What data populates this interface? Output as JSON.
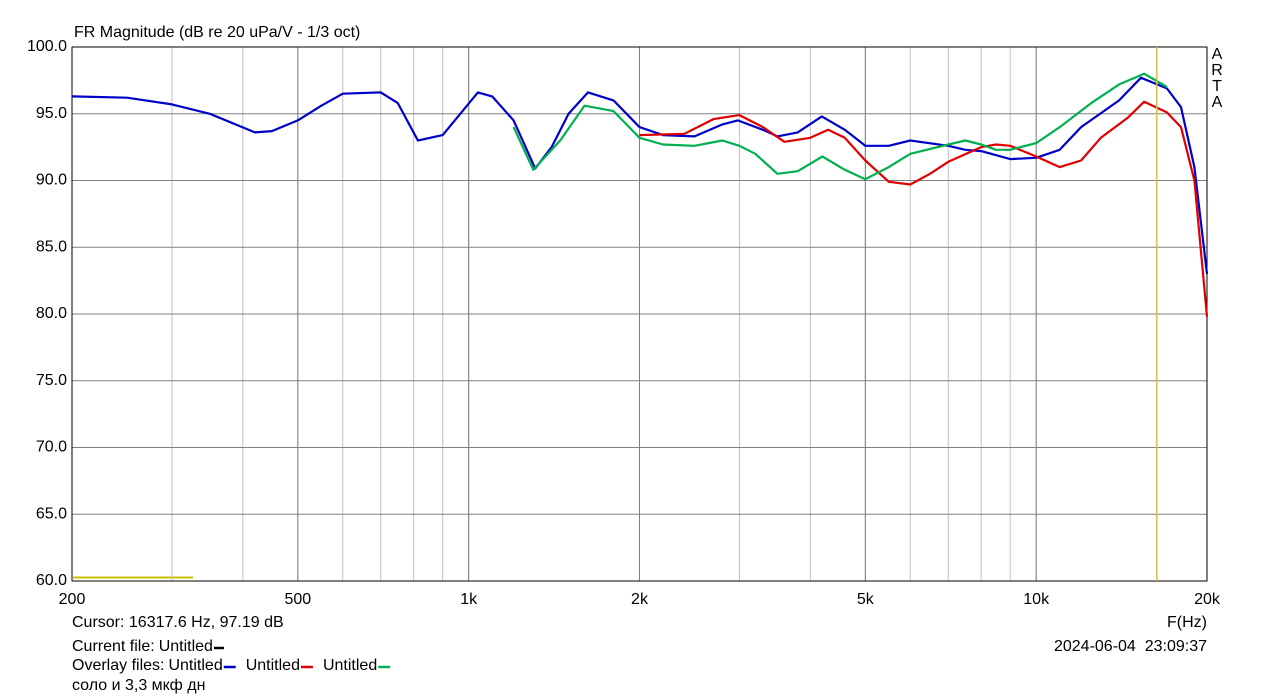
{
  "chart_data": {
    "type": "line",
    "title": "FR Magnitude (dB re 20 uPa/V - 1/3 oct)",
    "watermark": "ARTA",
    "x_label": "F(Hz)",
    "log_x": true,
    "grid": true,
    "xlim": [
      200,
      20000
    ],
    "xticks": [
      200,
      500,
      {
        "value": 1000,
        "label": "1k"
      },
      {
        "value": 2000,
        "label": "2k"
      },
      {
        "value": 5000,
        "label": "5k"
      },
      {
        "value": 10000,
        "label": "10k"
      },
      {
        "value": 20000,
        "label": "20k"
      }
    ],
    "ylim": [
      60,
      100
    ],
    "yticks": [
      {
        "value": 60,
        "label": "60.0"
      },
      {
        "value": 65,
        "label": "65.0"
      },
      {
        "value": 70,
        "label": "70.0"
      },
      {
        "value": 75,
        "label": "75.0"
      },
      {
        "value": 80,
        "label": "80.0"
      },
      {
        "value": 85,
        "label": "85.0"
      },
      {
        "value": 90,
        "label": "90.0"
      },
      {
        "value": 95,
        "label": "95.0"
      },
      {
        "value": 100,
        "label": "100.0"
      }
    ],
    "cursor": {
      "label": "Cursor: 16317.6 Hz, 97.19 dB",
      "x": 16317.6,
      "color": "#d4c040"
    },
    "current_file": {
      "label": "Current file:",
      "name": "Untitled",
      "color": "#000000"
    },
    "overlay_label": "Overlay files:",
    "note": "соло и 3,3 мкф дн",
    "timestamp": "2024-06-04  23:09:37",
    "series": [
      {
        "name": "Untitled",
        "color": "#0000c8",
        "x": [
          200,
          250,
          300,
          350,
          420,
          450,
          500,
          550,
          600,
          700,
          750,
          814,
          900,
          1038,
          1100,
          1200,
          1310,
          1400,
          1500,
          1623,
          1800,
          2000,
          2200,
          2500,
          2800,
          2980,
          3300,
          3500,
          3800,
          4190,
          4600,
          5000,
          5500,
          6000,
          7000,
          7500,
          8000,
          9000,
          10000,
          11000,
          12000,
          14000,
          15300,
          17000,
          18000,
          19000,
          20000
        ],
        "values": [
          96.3,
          96.2,
          95.7,
          95.0,
          93.6,
          93.7,
          94.5,
          95.6,
          96.5,
          96.6,
          95.8,
          93.0,
          93.4,
          96.6,
          96.3,
          94.5,
          90.9,
          92.5,
          95.0,
          96.6,
          96.0,
          94.0,
          93.4,
          93.3,
          94.2,
          94.5,
          93.8,
          93.3,
          93.6,
          94.8,
          93.8,
          92.6,
          92.6,
          93.0,
          92.6,
          92.3,
          92.2,
          91.6,
          91.7,
          92.3,
          94.0,
          96.0,
          97.7,
          96.9,
          95.5,
          91.0,
          83.0
        ]
      },
      {
        "name": "Untitled",
        "color": "#e00000",
        "x": [
          2000,
          2400,
          2700,
          3000,
          3300,
          3600,
          4000,
          4300,
          4600,
          5000,
          5500,
          6000,
          6500,
          7000,
          8000,
          8500,
          9000,
          10000,
          11000,
          12000,
          13000,
          14500,
          15500,
          17000,
          18000,
          19000,
          20000
        ],
        "values": [
          93.4,
          93.5,
          94.6,
          94.9,
          94.0,
          92.9,
          93.2,
          93.8,
          93.2,
          91.5,
          89.9,
          89.7,
          90.5,
          91.4,
          92.5,
          92.7,
          92.6,
          91.8,
          91.0,
          91.5,
          93.2,
          94.7,
          95.9,
          95.1,
          94.0,
          90.0,
          79.8
        ]
      },
      {
        "name": "Untitled",
        "color": "#00b050",
        "x": [
          1200,
          1300,
          1450,
          1600,
          1800,
          2000,
          2200,
          2500,
          2800,
          3000,
          3200,
          3500,
          3800,
          4200,
          4600,
          5000,
          5500,
          6000,
          7000,
          7500,
          8000,
          8500,
          9000,
          10000,
          11000,
          12500,
          14000,
          15500,
          17000
        ],
        "values": [
          94.0,
          90.8,
          93.0,
          95.6,
          95.2,
          93.2,
          92.7,
          92.6,
          93.0,
          92.6,
          92.0,
          90.5,
          90.7,
          91.8,
          90.8,
          90.1,
          91.0,
          92.0,
          92.7,
          93.0,
          92.7,
          92.3,
          92.3,
          92.8,
          94.0,
          95.8,
          97.2,
          98.0,
          97.0
        ]
      }
    ]
  }
}
